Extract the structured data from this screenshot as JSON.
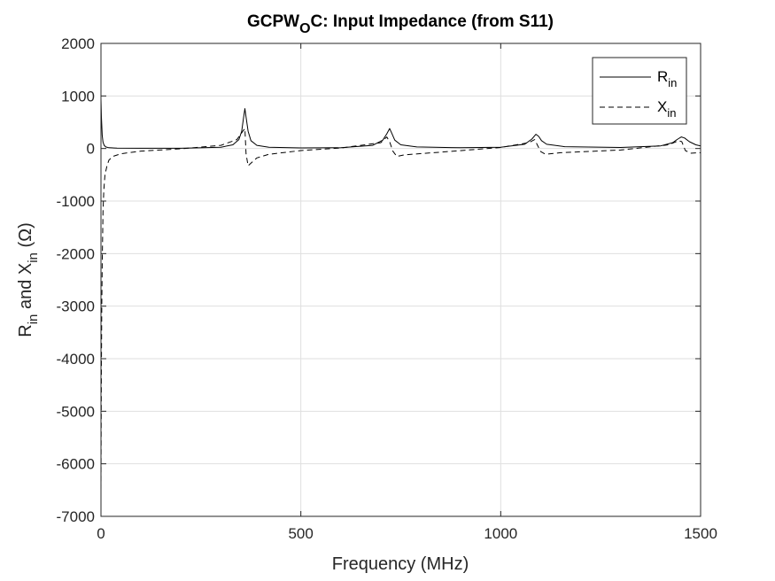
{
  "chart_data": {
    "type": "line",
    "title": {
      "main": "GCPW",
      "sub": "O",
      "rest": "C: Input Impedance (from S11)"
    },
    "xlabel": "Frequency (MHz)",
    "ylabel": {
      "r": "R",
      "r_sub": "in",
      "mid": " and X",
      "x_sub": "in",
      "unit": " (Ω)"
    },
    "xlim": [
      0,
      1500
    ],
    "ylim": [
      -7000,
      2000
    ],
    "x_ticks": [
      0,
      500,
      1000,
      1500
    ],
    "y_ticks": [
      -7000,
      -6000,
      -5000,
      -4000,
      -3000,
      -2000,
      -1000,
      0,
      1000,
      2000
    ],
    "grid": true,
    "legend_position": "top-right",
    "series": [
      {
        "name": "R",
        "name_sub": "in",
        "style": "solid",
        "color": "#000000",
        "x": [
          0,
          1,
          3,
          5,
          8,
          12,
          20,
          40,
          100,
          200,
          300,
          330,
          345,
          352,
          357,
          360,
          363,
          368,
          375,
          390,
          420,
          500,
          600,
          680,
          705,
          715,
          722,
          728,
          735,
          750,
          790,
          900,
          1000,
          1060,
          1078,
          1088,
          1095,
          1102,
          1115,
          1160,
          1300,
          1400,
          1430,
          1443,
          1452,
          1460,
          1472,
          1488,
          1500
        ],
        "y": [
          950,
          600,
          250,
          120,
          60,
          30,
          15,
          8,
          4,
          5,
          25,
          70,
          170,
          330,
          600,
          760,
          600,
          330,
          150,
          60,
          25,
          12,
          15,
          60,
          160,
          280,
          380,
          280,
          160,
          70,
          30,
          15,
          25,
          80,
          180,
          270,
          230,
          150,
          80,
          35,
          20,
          50,
          110,
          180,
          220,
          200,
          130,
          70,
          50
        ]
      },
      {
        "name": "X",
        "name_sub": "in",
        "style": "dashed",
        "color": "#000000",
        "x": [
          0,
          1,
          2,
          3,
          5,
          7,
          10,
          15,
          20,
          30,
          50,
          100,
          200,
          300,
          340,
          355,
          360,
          363,
          368,
          375,
          390,
          420,
          500,
          600,
          700,
          715,
          722,
          730,
          740,
          760,
          850,
          1000,
          1070,
          1085,
          1092,
          1100,
          1112,
          1150,
          1300,
          1420,
          1445,
          1453,
          1462,
          1475,
          1500
        ],
        "y": [
          -6500,
          -4200,
          -3000,
          -2200,
          -1200,
          -800,
          -500,
          -330,
          -220,
          -150,
          -100,
          -50,
          -5,
          60,
          170,
          330,
          380,
          -100,
          -330,
          -280,
          -180,
          -110,
          -40,
          10,
          110,
          220,
          130,
          -50,
          -150,
          -120,
          -70,
          20,
          110,
          170,
          60,
          -60,
          -110,
          -80,
          -30,
          70,
          150,
          130,
          -40,
          -90,
          -80
        ]
      }
    ]
  }
}
